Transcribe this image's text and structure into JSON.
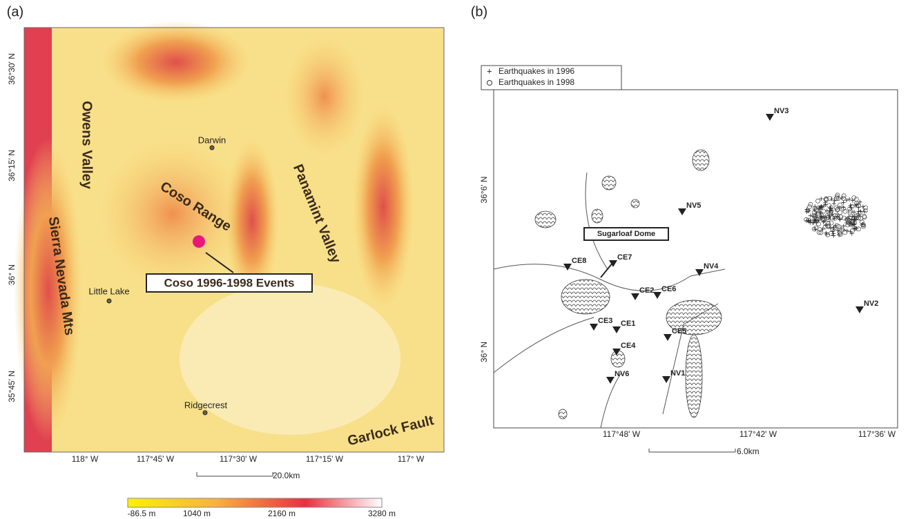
{
  "panel_a": {
    "label": "(a)",
    "lat_labels": [
      "36°30' N",
      "36°15' N",
      "36° N",
      "35°45' N"
    ],
    "lon_labels": [
      "118° W",
      "117°45' W",
      "117°30' W",
      "117°15' W",
      "117° W"
    ],
    "places": [
      "Owens Valley",
      "Sierra Nevada Mts",
      "Coso Range",
      "Panamint Valley",
      "Darwin",
      "Little Lake",
      "Ridgecrest",
      "Garlock Fault"
    ],
    "callout": "Coso 1996-1998 Events",
    "scale": "20.0km",
    "colorbar_labels": [
      "-86.5 m",
      "1040 m",
      "2160 m",
      "3280 m"
    ]
  },
  "panel_b": {
    "label": "(b)",
    "legend": [
      "Earthquakes in 1996",
      "Earthquakes in 1998"
    ],
    "lat_labels": [
      "36°6' N",
      "36° N"
    ],
    "lon_labels": [
      "117°48' W",
      "117°42' W",
      "117°36' W"
    ],
    "stations": [
      "NV3",
      "NV5",
      "NV4",
      "NV2",
      "CE8",
      "CE7",
      "CE2",
      "CE6",
      "CE3",
      "CE1",
      "CE4",
      "CE5",
      "NV6",
      "NV1"
    ],
    "callout": "Sugarloaf Dome",
    "scale": "6.0km"
  }
}
